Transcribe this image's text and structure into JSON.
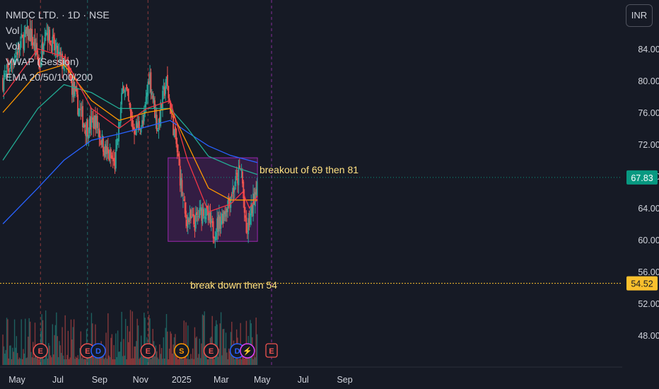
{
  "legend": {
    "symbol_line": "NMDC LTD. · 1D · NSE",
    "vol1": "Vol",
    "vol2": "Vol",
    "vwap": "VWAP (Session)",
    "ema": "EMA 20/50/100/200"
  },
  "currency_button": "INR",
  "colors": {
    "background": "#161a25",
    "up": "#26a69a",
    "down": "#ef5350",
    "ema20": "#f23645",
    "ema50": "#ff9800",
    "ema100": "#22ab94",
    "ema200": "#2962ff",
    "box_fill": "#9c27b0",
    "annotation_text": "#ffe082",
    "last_price_bg": "#089981",
    "level_bg": "#fbc02d"
  },
  "chart_data": {
    "type": "candlestick",
    "y_axis_ticks": [
      "84.00",
      "80.00",
      "76.00",
      "72.00",
      "68.00",
      "64.00",
      "60.00",
      "56.00",
      "52.00",
      "48.00"
    ],
    "x_axis_labels": [
      "May",
      "Jul",
      "Sep",
      "Nov",
      "2025",
      "Mar",
      "May",
      "Jul",
      "Sep"
    ],
    "ylim": [
      45.3,
      88.3
    ],
    "last_price": {
      "value": 67.83,
      "label": "67.83"
    },
    "level_line": {
      "value": 54.52,
      "label": "54.52"
    },
    "range_box": {
      "from": "2024-12-12",
      "to": "2025-04-24",
      "low": 59.8,
      "high": 70.3
    },
    "annotations": [
      {
        "text": "breakout of 69 then 81",
        "date": "2025-04-27",
        "price": 68.8
      },
      {
        "text": "break down then 54",
        "date": "2025-01-14",
        "price": 54.3
      }
    ],
    "event_markers": [
      {
        "type": "E",
        "date": "2024-06-05"
      },
      {
        "type": "E",
        "date": "2024-08-14"
      },
      {
        "type": "D",
        "date": "2024-08-30"
      },
      {
        "type": "E",
        "date": "2024-11-12"
      },
      {
        "type": "S",
        "date": "2025-01-01"
      },
      {
        "type": "E",
        "date": "2025-02-14"
      },
      {
        "type": "D",
        "date": "2025-03-25"
      },
      {
        "type": "⚡",
        "date": "2025-04-09"
      },
      {
        "type": "E",
        "date": "2025-05-15"
      }
    ],
    "price_path": [
      [
        "2024-04-10",
        80
      ],
      [
        "2024-04-22",
        82
      ],
      [
        "2024-05-08",
        85
      ],
      [
        "2024-05-20",
        86
      ],
      [
        "2024-06-04",
        82
      ],
      [
        "2024-06-12",
        87
      ],
      [
        "2024-06-20",
        85
      ],
      [
        "2024-07-02",
        83
      ],
      [
        "2024-07-16",
        81
      ],
      [
        "2024-07-30",
        77
      ],
      [
        "2024-08-12",
        74
      ],
      [
        "2024-08-26",
        75
      ],
      [
        "2024-09-10",
        71
      ],
      [
        "2024-09-24",
        69.5
      ],
      [
        "2024-10-07",
        80
      ],
      [
        "2024-10-21",
        74
      ],
      [
        "2024-11-05",
        74.5
      ],
      [
        "2024-11-14",
        81
      ],
      [
        "2024-11-26",
        74
      ],
      [
        "2024-12-09",
        80
      ],
      [
        "2024-12-24",
        72
      ],
      [
        "2025-01-06",
        63
      ],
      [
        "2025-01-20",
        62
      ],
      [
        "2025-02-03",
        64
      ],
      [
        "2025-02-17",
        61
      ],
      [
        "2025-03-03",
        63
      ],
      [
        "2025-03-17",
        66
      ],
      [
        "2025-03-31",
        69
      ],
      [
        "2025-04-07",
        60.5
      ],
      [
        "2025-04-16",
        64
      ],
      [
        "2025-04-24",
        67.83
      ]
    ],
    "ema20_path": [
      [
        "2024-04-10",
        78
      ],
      [
        "2024-06-01",
        84
      ],
      [
        "2024-07-10",
        83
      ],
      [
        "2024-08-20",
        76.5
      ],
      [
        "2024-09-30",
        74
      ],
      [
        "2024-11-10",
        76.5
      ],
      [
        "2024-12-15",
        77.5
      ],
      [
        "2025-01-10",
        70
      ],
      [
        "2025-02-10",
        63.5
      ],
      [
        "2025-03-15",
        64.5
      ],
      [
        "2025-04-02",
        66
      ],
      [
        "2025-04-12",
        64
      ],
      [
        "2025-04-24",
        65.5
      ]
    ],
    "ema50_path": [
      [
        "2024-04-10",
        76
      ],
      [
        "2024-06-01",
        81
      ],
      [
        "2024-07-10",
        82
      ],
      [
        "2024-08-20",
        77.5
      ],
      [
        "2024-09-30",
        75
      ],
      [
        "2024-11-10",
        76
      ],
      [
        "2024-12-15",
        76.5
      ],
      [
        "2025-01-10",
        72
      ],
      [
        "2025-02-10",
        66.5
      ],
      [
        "2025-03-15",
        65
      ],
      [
        "2025-04-24",
        65
      ]
    ],
    "ema100_path": [
      [
        "2024-04-10",
        70
      ],
      [
        "2024-06-01",
        76.5
      ],
      [
        "2024-07-10",
        79.5
      ],
      [
        "2024-08-20",
        78.5
      ],
      [
        "2024-09-30",
        76.5
      ],
      [
        "2024-11-10",
        76.5
      ],
      [
        "2024-12-15",
        76.5
      ],
      [
        "2025-01-10",
        74
      ],
      [
        "2025-02-10",
        70.5
      ],
      [
        "2025-03-15",
        69.3
      ],
      [
        "2025-04-24",
        68.2
      ]
    ],
    "ema200_path": [
      [
        "2024-04-10",
        62
      ],
      [
        "2024-06-01",
        66.5
      ],
      [
        "2024-07-10",
        70
      ],
      [
        "2024-08-20",
        72.5
      ],
      [
        "2024-09-30",
        73.3
      ],
      [
        "2024-11-10",
        74.2
      ],
      [
        "2024-12-15",
        75
      ],
      [
        "2025-01-10",
        73.5
      ],
      [
        "2025-02-10",
        71.8
      ],
      [
        "2025-03-15",
        70.6
      ],
      [
        "2025-04-24",
        69.7
      ]
    ]
  }
}
